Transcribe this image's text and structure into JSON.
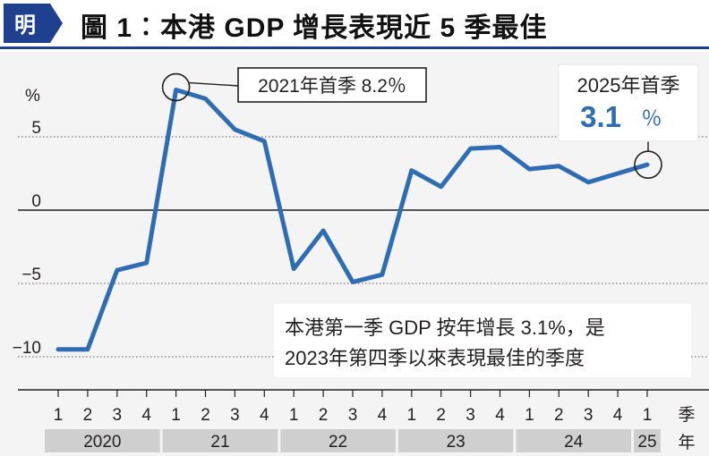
{
  "header": {
    "logo_text": "明",
    "title": "圖 1︰本港 GDP 增長表現近 5 季最佳"
  },
  "chart_data": {
    "type": "line",
    "title": "圖 1︰本港 GDP 增長表現近 5 季最佳",
    "ylabel": "%",
    "xlabel_quarter": "季",
    "xlabel_year": "年",
    "ylim": [
      -12,
      8.5
    ],
    "yticks": [
      {
        "value": 5,
        "label": "5"
      },
      {
        "value": 0,
        "label": "0"
      },
      {
        "value": -5,
        "label": "−5"
      },
      {
        "value": -10,
        "label": "−10"
      }
    ],
    "grid": true,
    "line_color": "#2e6db4",
    "quarter_labels": [
      "1",
      "2",
      "3",
      "4",
      "1",
      "2",
      "3",
      "4",
      "1",
      "2",
      "3",
      "4",
      "1",
      "2",
      "3",
      "4",
      "1",
      "2",
      "3",
      "4",
      "1"
    ],
    "year_groups": [
      {
        "label": "2020",
        "quarters": 4
      },
      {
        "label": "21",
        "quarters": 4
      },
      {
        "label": "22",
        "quarters": 4
      },
      {
        "label": "23",
        "quarters": 4
      },
      {
        "label": "24",
        "quarters": 4
      },
      {
        "label": "25",
        "quarters": 1
      }
    ],
    "series": [
      {
        "values": [
          -9.5,
          -9.5,
          -4.1,
          -3.6,
          8.2,
          7.6,
          5.5,
          4.7,
          -4.0,
          -1.4,
          -4.9,
          -4.4,
          2.7,
          1.6,
          4.2,
          4.3,
          2.8,
          3.0,
          1.9,
          2.5,
          3.1
        ]
      }
    ],
    "annotations": [
      {
        "index": 4,
        "text": "2021年首季 8.2％"
      },
      {
        "index": 20,
        "text_top": "2025年首季",
        "text_value": "3.1",
        "text_unit": "％"
      }
    ],
    "note_lines": [
      "本港第一季 GDP 按年增長 3.1%，是",
      "2023年第四季以來表現最佳的季度"
    ]
  }
}
